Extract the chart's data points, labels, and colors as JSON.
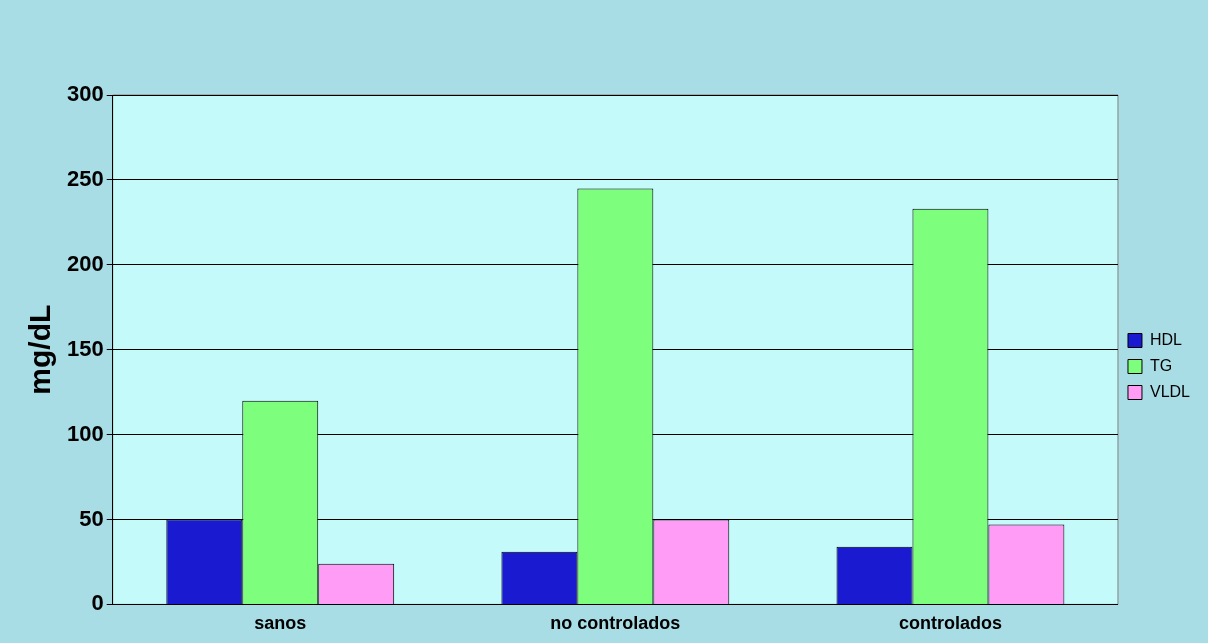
{
  "chart_data": {
    "type": "bar",
    "ylabel": "mg/dL",
    "categories": [
      "sanos",
      "no controlados",
      "controlados"
    ],
    "series": [
      {
        "name": "HDL",
        "color": "#1a1ad0",
        "values": [
          50,
          31,
          34
        ]
      },
      {
        "name": "TG",
        "color": "#7dff7d",
        "values": [
          120,
          245,
          233
        ]
      },
      {
        "name": "VLDL",
        "color": "#ff9cf5",
        "values": [
          24,
          50,
          47
        ]
      }
    ],
    "ylim": [
      0,
      300
    ],
    "yticks": [
      0,
      50,
      100,
      150,
      200,
      250,
      300
    ],
    "grid": "y",
    "legend": "right"
  }
}
